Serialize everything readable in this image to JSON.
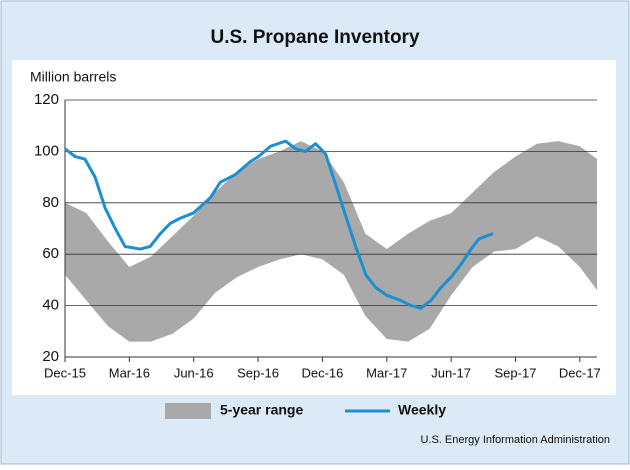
{
  "chart_data": {
    "type": "line",
    "title": "U.S. Propane Inventory",
    "ylabel": "Million barrels",
    "source": "U.S. Energy Information Administration",
    "xlim": [
      0,
      24.8
    ],
    "xticks": [
      {
        "value": 0,
        "label": "Dec-15"
      },
      {
        "value": 3,
        "label": "Mar-16"
      },
      {
        "value": 6,
        "label": "Jun-16"
      },
      {
        "value": 9,
        "label": "Sep-16"
      },
      {
        "value": 12,
        "label": "Dec-16"
      },
      {
        "value": 15,
        "label": "Mar-17"
      },
      {
        "value": 18,
        "label": "Jun-17"
      },
      {
        "value": 21,
        "label": "Sep-17"
      },
      {
        "value": 24,
        "label": "Dec-17"
      }
    ],
    "ylim": [
      20,
      120
    ],
    "yticks": [
      20,
      40,
      60,
      80,
      100,
      120
    ],
    "grid": true,
    "legend": "bottom",
    "range": {
      "name": "5-year range",
      "color": "#a9a9a9",
      "x": [
        0,
        1,
        2,
        3,
        4,
        5,
        6,
        7,
        8,
        9,
        10,
        11,
        12,
        13,
        14,
        15,
        16,
        17,
        18,
        19,
        20,
        21,
        22,
        23,
        24,
        24.8
      ],
      "high": [
        80,
        76,
        65,
        55,
        59,
        67,
        75,
        84,
        92,
        97,
        100,
        104,
        100,
        88,
        68,
        62,
        68,
        73,
        76,
        84,
        92,
        98,
        103,
        104,
        102,
        97
      ],
      "low": [
        52,
        42,
        32,
        26,
        26,
        29,
        35,
        45,
        51,
        55,
        58,
        60,
        58,
        52,
        36,
        27,
        26,
        31,
        44,
        55,
        61,
        62,
        67,
        63,
        55,
        46
      ]
    },
    "series": [
      {
        "name": "Weekly",
        "color": "#1b8fd2",
        "x": [
          0,
          0.47,
          0.93,
          1.4,
          1.87,
          2.34,
          2.8,
          3.5,
          3.97,
          4.44,
          4.91,
          5.37,
          5.98,
          6.78,
          7.24,
          7.94,
          8.64,
          9.02,
          9.58,
          10.28,
          10.75,
          11.21,
          11.68,
          12.15,
          12.62,
          13.08,
          13.55,
          14.02,
          14.49,
          15.0,
          15.65,
          16.12,
          16.59,
          17.06,
          17.52,
          17.99,
          18.46,
          18.93,
          19.3,
          19.63,
          19.95
        ],
        "values": [
          101,
          98,
          97,
          90,
          78,
          70,
          63,
          62,
          63,
          68,
          72,
          74,
          76,
          82,
          88,
          91,
          96,
          98,
          102,
          104,
          101,
          100,
          103,
          99,
          87,
          75,
          63,
          52,
          47,
          44,
          42,
          40,
          39,
          42,
          47,
          51,
          56,
          62,
          66,
          67,
          68
        ]
      }
    ]
  }
}
